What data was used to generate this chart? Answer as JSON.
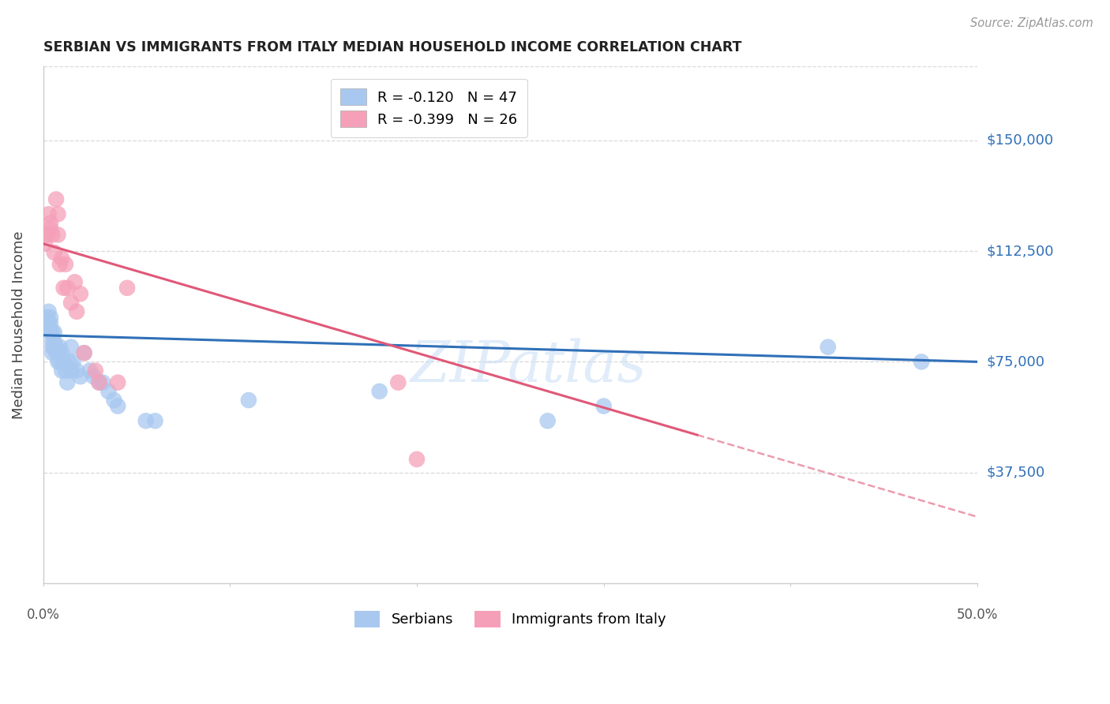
{
  "title": "SERBIAN VS IMMIGRANTS FROM ITALY MEDIAN HOUSEHOLD INCOME CORRELATION CHART",
  "source": "Source: ZipAtlas.com",
  "ylabel": "Median Household Income",
  "xlim": [
    0.0,
    0.5
  ],
  "ylim": [
    0,
    175000
  ],
  "yticks": [
    37500,
    75000,
    112500,
    150000
  ],
  "ytick_labels": [
    "$37,500",
    "$75,000",
    "$112,500",
    "$150,000"
  ],
  "watermark": "ZIPatlas",
  "legend_serbian_R": "-0.120",
  "legend_serbian_N": "47",
  "legend_italy_R": "-0.399",
  "legend_italy_N": "26",
  "serbian_color": "#A8C8F0",
  "italy_color": "#F5A0B8",
  "serbian_line_color": "#3070B8",
  "italy_line_color": "#E05878",
  "serbia_x": [
    0.001,
    0.002,
    0.003,
    0.003,
    0.004,
    0.004,
    0.004,
    0.005,
    0.005,
    0.005,
    0.005,
    0.006,
    0.006,
    0.006,
    0.007,
    0.007,
    0.008,
    0.008,
    0.009,
    0.009,
    0.01,
    0.01,
    0.011,
    0.012,
    0.013,
    0.014,
    0.015,
    0.015,
    0.016,
    0.018,
    0.02,
    0.022,
    0.025,
    0.027,
    0.03,
    0.032,
    0.035,
    0.038,
    0.04,
    0.055,
    0.06,
    0.11,
    0.18,
    0.27,
    0.3,
    0.42,
    0.47
  ],
  "serbia_y": [
    88000,
    90000,
    88000,
    92000,
    85000,
    88000,
    90000,
    82000,
    85000,
    80000,
    78000,
    80000,
    82000,
    85000,
    78000,
    80000,
    75000,
    78000,
    80000,
    75000,
    78000,
    72000,
    75000,
    72000,
    68000,
    75000,
    72000,
    80000,
    75000,
    72000,
    70000,
    78000,
    72000,
    70000,
    68000,
    68000,
    65000,
    62000,
    60000,
    55000,
    55000,
    62000,
    65000,
    55000,
    60000,
    80000,
    75000
  ],
  "italy_x": [
    0.001,
    0.002,
    0.003,
    0.004,
    0.004,
    0.005,
    0.006,
    0.007,
    0.008,
    0.008,
    0.009,
    0.01,
    0.011,
    0.012,
    0.013,
    0.015,
    0.017,
    0.018,
    0.02,
    0.022,
    0.028,
    0.03,
    0.04,
    0.045,
    0.19,
    0.2
  ],
  "italy_y": [
    115000,
    118000,
    125000,
    122000,
    120000,
    118000,
    112000,
    130000,
    125000,
    118000,
    108000,
    110000,
    100000,
    108000,
    100000,
    95000,
    102000,
    92000,
    98000,
    78000,
    72000,
    68000,
    68000,
    100000,
    68000,
    42000
  ],
  "background_color": "#FFFFFF",
  "grid_color": "#D8D8D8"
}
